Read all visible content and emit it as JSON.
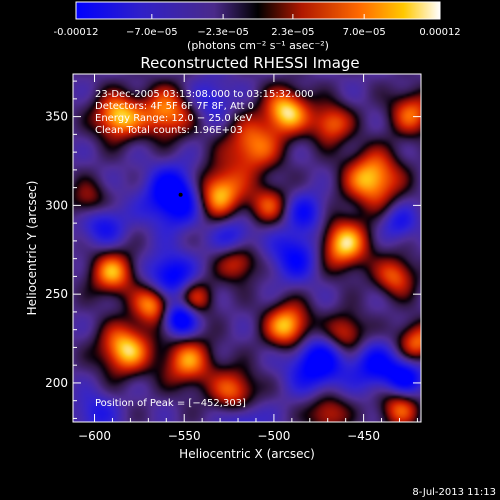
{
  "colorbar": {
    "tick_labels": [
      "-0.00012",
      "−7.0e−05",
      "−2.3e−05",
      "2.3e−05",
      "7.0e−05",
      "0.00012"
    ],
    "tick_values": [
      -0.00012,
      -7e-05,
      -2.3e-05,
      2.3e-05,
      7e-05,
      0.00012
    ],
    "unit_label": "(photons cm⁻² s⁻¹ asec⁻²)",
    "range": [
      -0.00012,
      0.00012
    ],
    "colors": [
      "#0000ff",
      "#4a2aa0",
      "#000000",
      "#d41e00",
      "#ff8c00",
      "#ffffff"
    ]
  },
  "chart_data": {
    "type": "heatmap",
    "title": "Reconstructed RHESSI Image",
    "xlabel": "Heliocentric X (arcsec)",
    "ylabel": "Heliocentric Y (arcsec)",
    "xlim": [
      -612,
      -418
    ],
    "ylim": [
      178,
      374
    ],
    "x_ticks": [
      -600,
      -550,
      -500,
      -450
    ],
    "x_tick_labels": [
      "−600",
      "−550",
      "−500",
      "−450"
    ],
    "y_ticks": [
      200,
      250,
      300,
      350
    ],
    "y_tick_labels": [
      "200",
      "250",
      "300",
      "350"
    ],
    "annotation_lines": [
      "23-Dec-2005 03:13:08.000 to 03:15:32.000",
      "Detectors: 4F 5F 6F 7F 8F, Att 0",
      "Energy Range: 12.0 − 25.0 keV",
      "Clean    Total counts: 1.96E+03"
    ],
    "peak_text": "Position of Peak = [−452,303]",
    "peak": [
      -452,
      303
    ],
    "sources": [
      {
        "x": -587,
        "y": 350,
        "v": 1.0,
        "s": 9
      },
      {
        "x": -560,
        "y": 352,
        "v": 0.85,
        "s": 10
      },
      {
        "x": -512,
        "y": 333,
        "v": 0.8,
        "s": 11
      },
      {
        "x": -493,
        "y": 353,
        "v": 1.0,
        "s": 9
      },
      {
        "x": -468,
        "y": 346,
        "v": 0.75,
        "s": 8
      },
      {
        "x": -445,
        "y": 315,
        "v": 1.0,
        "s": 11
      },
      {
        "x": -423,
        "y": 352,
        "v": 0.7,
        "s": 9
      },
      {
        "x": -531,
        "y": 307,
        "v": 1.0,
        "s": 10
      },
      {
        "x": -503,
        "y": 300,
        "v": 0.6,
        "s": 8
      },
      {
        "x": -461,
        "y": 278,
        "v": 1.0,
        "s": 10
      },
      {
        "x": -432,
        "y": 260,
        "v": 0.7,
        "s": 8
      },
      {
        "x": -520,
        "y": 268,
        "v": 0.65,
        "s": 8
      },
      {
        "x": -590,
        "y": 262,
        "v": 0.85,
        "s": 9
      },
      {
        "x": -567,
        "y": 244,
        "v": 0.9,
        "s": 8
      },
      {
        "x": -543,
        "y": 248,
        "v": 0.6,
        "s": 7
      },
      {
        "x": -583,
        "y": 219,
        "v": 1.0,
        "s": 10
      },
      {
        "x": -548,
        "y": 212,
        "v": 0.8,
        "s": 10
      },
      {
        "x": -492,
        "y": 232,
        "v": 1.0,
        "s": 9
      },
      {
        "x": -460,
        "y": 228,
        "v": 0.65,
        "s": 8
      },
      {
        "x": -420,
        "y": 223,
        "v": 0.75,
        "s": 8
      },
      {
        "x": -522,
        "y": 195,
        "v": 0.75,
        "s": 9
      },
      {
        "x": -470,
        "y": 183,
        "v": 0.6,
        "s": 8
      },
      {
        "x": -430,
        "y": 186,
        "v": 0.7,
        "s": 8
      },
      {
        "x": -603,
        "y": 302,
        "v": 0.55,
        "s": 8
      },
      {
        "x": -555,
        "y": 305,
        "v": -1.0,
        "s": 11
      },
      {
        "x": -596,
        "y": 290,
        "v": -0.55,
        "s": 9
      },
      {
        "x": -522,
        "y": 282,
        "v": -0.5,
        "s": 8
      },
      {
        "x": -558,
        "y": 260,
        "v": -0.75,
        "s": 9
      },
      {
        "x": -553,
        "y": 236,
        "v": -0.9,
        "s": 7
      },
      {
        "x": -488,
        "y": 272,
        "v": -0.6,
        "s": 10
      },
      {
        "x": -482,
        "y": 296,
        "v": -0.5,
        "s": 8
      },
      {
        "x": -430,
        "y": 290,
        "v": -0.45,
        "s": 7
      },
      {
        "x": -476,
        "y": 211,
        "v": -0.8,
        "s": 11
      },
      {
        "x": -444,
        "y": 210,
        "v": -0.6,
        "s": 9
      },
      {
        "x": -427,
        "y": 203,
        "v": -0.7,
        "s": 8
      },
      {
        "x": -517,
        "y": 180,
        "v": -0.45,
        "s": 8
      },
      {
        "x": -600,
        "y": 183,
        "v": -0.4,
        "s": 8
      },
      {
        "x": -535,
        "y": 360,
        "v": -0.4,
        "s": 8
      }
    ]
  },
  "footer": {
    "timestamp": "8-Jul-2013 11:13"
  }
}
